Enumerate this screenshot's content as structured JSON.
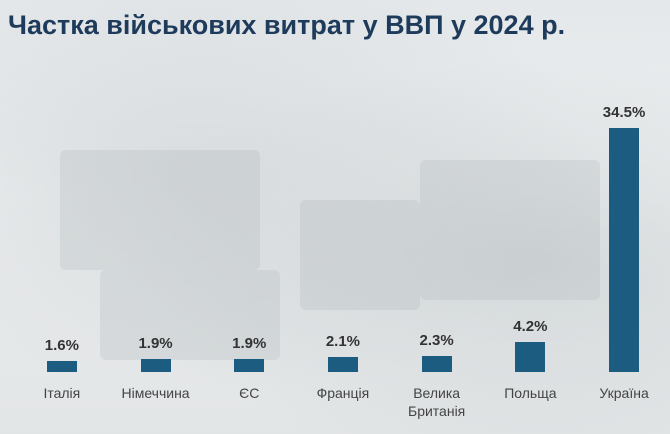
{
  "chart_data": {
    "type": "bar",
    "title": "Частка військових витрат у ВВП у 2024 р.",
    "categories": [
      "Італія",
      "Німеччина",
      "ЄС",
      "Франція",
      "Велика Британія",
      "Польща",
      "Україна"
    ],
    "values": [
      1.6,
      1.9,
      1.9,
      2.1,
      2.3,
      4.2,
      34.5
    ],
    "value_labels": [
      "1.6%",
      "1.9%",
      "1.9%",
      "2.1%",
      "2.3%",
      "4.2%",
      "34.5%"
    ],
    "color": "#1b5c80"
  }
}
